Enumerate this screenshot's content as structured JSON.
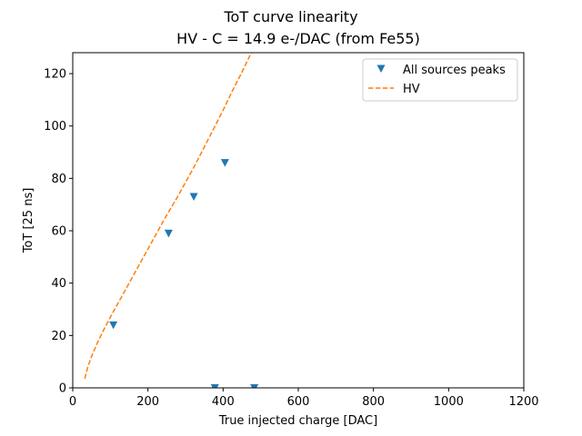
{
  "chart_data": {
    "type": "scatter",
    "title": "ToT curve linearity",
    "subtitle": "HV - C = 14.9 e-/DAC (from Fe55)",
    "xlabel": "True injected charge [DAC]",
    "ylabel": "ToT [25 ns]",
    "xlim": [
      0,
      1200
    ],
    "ylim": [
      0,
      128
    ],
    "xticks": [
      0,
      200,
      400,
      600,
      800,
      1000,
      1200
    ],
    "yticks": [
      0,
      20,
      40,
      60,
      80,
      100,
      120
    ],
    "grid": false,
    "legend_position": "upper right",
    "series": [
      {
        "name": "All sources peaks",
        "kind": "scatter",
        "marker": "triangle-down",
        "color": "#1f77b4",
        "x": [
          108,
          255,
          322,
          405,
          378,
          483
        ],
        "y": [
          24,
          59,
          73,
          86,
          0,
          0
        ]
      },
      {
        "name": "HV",
        "kind": "line",
        "linestyle": "dashed",
        "color": "#ff7f0e",
        "x": [
          32,
          40,
          50,
          65,
          80,
          100,
          125,
          150,
          175,
          200,
          225,
          250,
          275,
          300,
          325,
          350,
          375,
          400,
          425,
          450,
          475
        ],
        "y": [
          3.5,
          8,
          12,
          17,
          21.5,
          27,
          33.5,
          40,
          46.5,
          53,
          59.5,
          66,
          72,
          78.5,
          85,
          92,
          99,
          106,
          113.5,
          120.5,
          128
        ]
      }
    ]
  }
}
